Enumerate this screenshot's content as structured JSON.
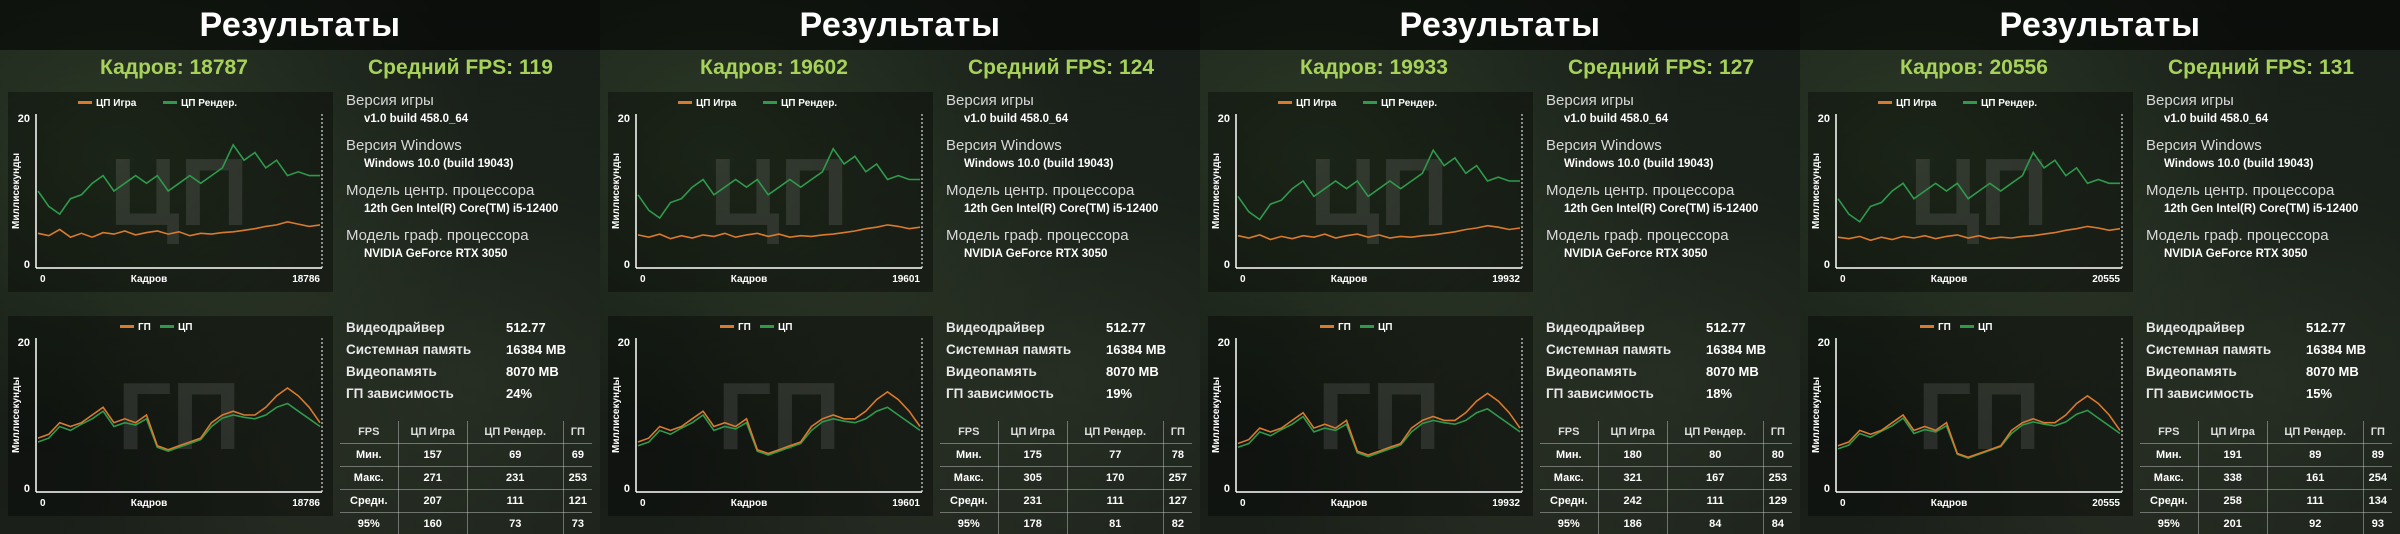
{
  "colors": {
    "orange": "#d97a2c",
    "green": "#2f9a4c",
    "accent": "#a6d25a"
  },
  "panels": [
    {
      "title": "Результаты",
      "frames": "Кадров: 18787",
      "avg_fps": "Средний FPS: 119",
      "info": [
        {
          "label": "Версия игры",
          "value": "v1.0 build 458.0_64"
        },
        {
          "label": "Версия Windows",
          "value": "Windows 10.0 (build 19043)"
        },
        {
          "label": "Модель центр. процессора",
          "value": "12th Gen Intel(R) Core(TM) i5-12400"
        },
        {
          "label": "Модель граф. процессора",
          "value": "NVIDIA GeForce RTX 3050"
        }
      ],
      "spec": [
        {
          "k": "Видеодрайвер",
          "v": "512.77"
        },
        {
          "k": "Системная память",
          "v": "16384 MB"
        },
        {
          "k": "Видеопамять",
          "v": "8070 MB"
        },
        {
          "k": "ГП зависимость",
          "v": "24%"
        }
      ],
      "table": {
        "headers": [
          "FPS",
          "ЦП Игра",
          "ЦП Рендер.",
          "ГП"
        ],
        "rows": [
          [
            "Мин.",
            "157",
            "69",
            "69"
          ],
          [
            "Макс.",
            "271",
            "231",
            "253"
          ],
          [
            "Средн.",
            "207",
            "111",
            "121"
          ],
          [
            "95%",
            "160",
            "73",
            "73"
          ]
        ]
      },
      "cpu_chart": {
        "legend": [
          "ЦП Игра",
          "ЦП Рендер."
        ],
        "watermark": "ЦП",
        "ylabel": "Миллисекунды",
        "xlabel": "Кадров",
        "ytick_max": "20",
        "ytick_min": "0",
        "xtick_min": "0",
        "xtick_max": "18786",
        "series": [
          {
            "name": "ЦП Игра",
            "values": [
              4.5,
              4.2,
              5,
              4,
              4.5,
              4,
              4.6,
              4.4,
              4.8,
              4.3,
              4.6,
              4.8,
              4.4,
              4.7,
              4.2,
              4.5,
              4.4,
              4.6,
              4.7,
              4.9,
              5.1,
              5.4,
              5.6,
              6,
              5.7,
              5.4,
              5.6
            ]
          },
          {
            "name": "ЦП Рендер.",
            "values": [
              10,
              8,
              7,
              9,
              9.5,
              11,
              12,
              10,
              11,
              12,
              11,
              12,
              10,
              11,
              12,
              11,
              12,
              13,
              16,
              14,
              15,
              13,
              14,
              12,
              12.5,
              12,
              12
            ]
          }
        ]
      },
      "gpu_chart": {
        "legend": [
          "ГП",
          "ЦП"
        ],
        "watermark": "ГП",
        "ylabel": "Миллисекунды",
        "xlabel": "Кадров",
        "ytick_max": "20",
        "ytick_min": "0",
        "xtick_min": "0",
        "xtick_max": "18786",
        "series": [
          {
            "name": "ГП",
            "values": [
              7,
              7.5,
              9,
              8.5,
              9,
              10,
              11,
              9,
              9.5,
              9,
              10,
              6,
              5.5,
              6,
              6.5,
              7,
              9,
              10,
              10.5,
              10,
              10,
              11,
              12.5,
              13.5,
              12.5,
              11,
              9
            ]
          },
          {
            "name": "ЦП",
            "values": [
              6.5,
              7,
              8.5,
              8,
              8.8,
              9.5,
              10.5,
              8.5,
              9,
              8.7,
              9.5,
              5.8,
              5.3,
              5.8,
              6.3,
              6.8,
              8.5,
              9.6,
              10,
              9.7,
              9.5,
              10,
              11,
              11.5,
              10.5,
              9.5,
              8.5
            ]
          }
        ]
      }
    },
    {
      "title": "Результаты",
      "frames": "Кадров: 19602",
      "avg_fps": "Средний FPS: 124",
      "info": [
        {
          "label": "Версия игры",
          "value": "v1.0 build 458.0_64"
        },
        {
          "label": "Версия Windows",
          "value": "Windows 10.0 (build 19043)"
        },
        {
          "label": "Модель центр. процессора",
          "value": "12th Gen Intel(R) Core(TM) i5-12400"
        },
        {
          "label": "Модель граф. процессора",
          "value": "NVIDIA GeForce RTX 3050"
        }
      ],
      "spec": [
        {
          "k": "Видеодрайвер",
          "v": "512.77"
        },
        {
          "k": "Системная память",
          "v": "16384 MB"
        },
        {
          "k": "Видеопамять",
          "v": "8070 MB"
        },
        {
          "k": "ГП зависимость",
          "v": "19%"
        }
      ],
      "table": {
        "headers": [
          "FPS",
          "ЦП Игра",
          "ЦП Рендер.",
          "ГП"
        ],
        "rows": [
          [
            "Мин.",
            "175",
            "77",
            "78"
          ],
          [
            "Макс.",
            "305",
            "170",
            "257"
          ],
          [
            "Средн.",
            "231",
            "111",
            "127"
          ],
          [
            "95%",
            "178",
            "81",
            "82"
          ]
        ]
      },
      "cpu_chart": {
        "legend": [
          "ЦП Игра",
          "ЦП Рендер."
        ],
        "watermark": "ЦП",
        "ylabel": "Миллисекунды",
        "xlabel": "Кадров",
        "ytick_max": "20",
        "ytick_min": "0",
        "xtick_min": "0",
        "xtick_max": "19601",
        "series": [
          {
            "name": "ЦП Игра",
            "values": [
              4.3,
              4,
              4.4,
              3.8,
              4.2,
              3.9,
              4.3,
              4.1,
              4.5,
              4,
              4.3,
              4.5,
              4.1,
              4.4,
              4,
              4.2,
              4.1,
              4.3,
              4.4,
              4.6,
              4.8,
              5.1,
              5.3,
              5.6,
              5.4,
              5.1,
              5.3
            ]
          },
          {
            "name": "ЦП Рендер.",
            "values": [
              9.5,
              7.5,
              6.5,
              8.5,
              9,
              10.5,
              11.5,
              9.5,
              10.5,
              11.5,
              10.5,
              11.5,
              9.5,
              10.5,
              11.5,
              10.5,
              11.5,
              12.5,
              15.5,
              13.5,
              14.5,
              12.5,
              13.5,
              11.5,
              12,
              11.5,
              11.5
            ]
          }
        ]
      },
      "gpu_chart": {
        "legend": [
          "ГП",
          "ЦП"
        ],
        "watermark": "ГП",
        "ylabel": "Миллисекунды",
        "xlabel": "Кадров",
        "ytick_max": "20",
        "ytick_min": "0",
        "xtick_min": "0",
        "xtick_max": "19601",
        "series": [
          {
            "name": "ГП",
            "values": [
              6.5,
              7,
              8.5,
              8,
              8.5,
              9.5,
              10.5,
              8.5,
              9,
              8.5,
              9.5,
              5.5,
              5,
              5.5,
              6,
              6.5,
              8.5,
              9.5,
              10,
              9.5,
              9.5,
              10.5,
              12,
              13,
              12,
              10.5,
              8.5
            ]
          },
          {
            "name": "ЦП",
            "values": [
              6,
              6.5,
              8,
              7.5,
              8.3,
              9,
              10,
              8,
              8.5,
              8.2,
              9,
              5.3,
              4.8,
              5.3,
              5.8,
              6.3,
              8,
              9.1,
              9.5,
              9.2,
              9,
              9.5,
              10.5,
              11,
              10,
              9,
              8
            ]
          }
        ]
      }
    },
    {
      "title": "Результаты",
      "frames": "Кадров: 19933",
      "avg_fps": "Средний FPS: 127",
      "info": [
        {
          "label": "Версия игры",
          "value": "v1.0 build 458.0_64"
        },
        {
          "label": "Версия Windows",
          "value": "Windows 10.0 (build 19043)"
        },
        {
          "label": "Модель центр. процессора",
          "value": "12th Gen Intel(R) Core(TM) i5-12400"
        },
        {
          "label": "Модель граф. процессора",
          "value": "NVIDIA GeForce RTX 3050"
        }
      ],
      "spec": [
        {
          "k": "Видеодрайвер",
          "v": "512.77"
        },
        {
          "k": "Системная память",
          "v": "16384 MB"
        },
        {
          "k": "Видеопамять",
          "v": "8070 MB"
        },
        {
          "k": "ГП зависимость",
          "v": "18%"
        }
      ],
      "table": {
        "headers": [
          "FPS",
          "ЦП Игра",
          "ЦП Рендер.",
          "ГП"
        ],
        "rows": [
          [
            "Мин.",
            "180",
            "80",
            "80"
          ],
          [
            "Макс.",
            "321",
            "167",
            "253"
          ],
          [
            "Средн.",
            "242",
            "111",
            "129"
          ],
          [
            "95%",
            "186",
            "84",
            "84"
          ]
        ]
      },
      "cpu_chart": {
        "legend": [
          "ЦП Игра",
          "ЦП Рендер."
        ],
        "watermark": "ЦП",
        "ylabel": "Миллисекунды",
        "xlabel": "Кадров",
        "ytick_max": "20",
        "ytick_min": "0",
        "xtick_min": "0",
        "xtick_max": "19932",
        "series": [
          {
            "name": "ЦП Игра",
            "values": [
              4.2,
              3.9,
              4.3,
              3.7,
              4.1,
              3.8,
              4.2,
              4,
              4.4,
              3.9,
              4.2,
              4.4,
              4,
              4.3,
              3.9,
              4.1,
              4,
              4.2,
              4.3,
              4.5,
              4.7,
              5,
              5.2,
              5.5,
              5.3,
              5,
              5.2
            ]
          },
          {
            "name": "ЦП Рендер.",
            "values": [
              9.3,
              7.3,
              6.3,
              8.3,
              8.8,
              10.3,
              11.3,
              9.3,
              10.3,
              11.3,
              10.3,
              11.3,
              9.3,
              10.3,
              11.3,
              10.3,
              11.3,
              12.3,
              15.3,
              13.3,
              14.3,
              12.3,
              13.3,
              11.3,
              11.8,
              11.3,
              11.3
            ]
          }
        ]
      },
      "gpu_chart": {
        "legend": [
          "ГП",
          "ЦП"
        ],
        "watermark": "ГП",
        "ylabel": "Миллисекунды",
        "xlabel": "Кадров",
        "ytick_max": "20",
        "ytick_min": "0",
        "xtick_min": "0",
        "xtick_max": "19932",
        "series": [
          {
            "name": "ГП",
            "values": [
              6.3,
              6.8,
              8.3,
              7.8,
              8.3,
              9.3,
              10.3,
              8.3,
              8.8,
              8.3,
              9.3,
              5.3,
              4.8,
              5.3,
              5.8,
              6.3,
              8.3,
              9.3,
              9.8,
              9.3,
              9.3,
              10.3,
              11.8,
              12.8,
              11.8,
              10.3,
              8.3
            ]
          },
          {
            "name": "ЦП",
            "values": [
              5.8,
              6.3,
              7.8,
              7.3,
              8.1,
              8.8,
              9.8,
              7.8,
              8.3,
              8,
              8.8,
              5.1,
              4.6,
              5.1,
              5.6,
              6.1,
              7.8,
              8.9,
              9.3,
              9,
              8.8,
              9.3,
              10.3,
              10.8,
              9.8,
              8.8,
              7.8
            ]
          }
        ]
      }
    },
    {
      "title": "Результаты",
      "frames": "Кадров: 20556",
      "avg_fps": "Средний FPS: 131",
      "info": [
        {
          "label": "Версия игры",
          "value": "v1.0 build 458.0_64"
        },
        {
          "label": "Версия Windows",
          "value": "Windows 10.0 (build 19043)"
        },
        {
          "label": "Модель центр. процессора",
          "value": "12th Gen Intel(R) Core(TM) i5-12400"
        },
        {
          "label": "Модель граф. процессора",
          "value": "NVIDIA GeForce RTX 3050"
        }
      ],
      "spec": [
        {
          "k": "Видеодрайвер",
          "v": "512.77"
        },
        {
          "k": "Системная память",
          "v": "16384 MB"
        },
        {
          "k": "Видеопамять",
          "v": "8070 MB"
        },
        {
          "k": "ГП зависимость",
          "v": "15%"
        }
      ],
      "table": {
        "headers": [
          "FPS",
          "ЦП Игра",
          "ЦП Рендер.",
          "ГП"
        ],
        "rows": [
          [
            "Мин.",
            "191",
            "89",
            "89"
          ],
          [
            "Макс.",
            "338",
            "161",
            "254"
          ],
          [
            "Средн.",
            "258",
            "111",
            "134"
          ],
          [
            "95%",
            "201",
            "92",
            "93"
          ]
        ]
      },
      "cpu_chart": {
        "legend": [
          "ЦП Игра",
          "ЦП Рендер."
        ],
        "watermark": "ЦП",
        "ylabel": "Миллисекунды",
        "xlabel": "Кадров",
        "ytick_max": "20",
        "ytick_min": "0",
        "xtick_min": "0",
        "xtick_max": "20555",
        "series": [
          {
            "name": "ЦП Игра",
            "values": [
              4,
              3.8,
              4.1,
              3.6,
              4,
              3.7,
              4.1,
              3.9,
              4.2,
              3.8,
              4.1,
              4.3,
              3.9,
              4.2,
              3.8,
              4,
              3.9,
              4.1,
              4.2,
              4.4,
              4.6,
              4.9,
              5.1,
              5.4,
              5.2,
              4.9,
              5.1
            ]
          },
          {
            "name": "ЦП Рендер.",
            "values": [
              9,
              7,
              6,
              8,
              8.5,
              10,
              11,
              9,
              10,
              11,
              10,
              11,
              9,
              10,
              11,
              10,
              11,
              12,
              15,
              13,
              14,
              12,
              13,
              11,
              11.5,
              11,
              11
            ]
          }
        ]
      },
      "gpu_chart": {
        "legend": [
          "ГП",
          "ЦП"
        ],
        "watermark": "ГП",
        "ylabel": "Миллисекунды",
        "xlabel": "Кадров",
        "ytick_max": "20",
        "ytick_min": "0",
        "xtick_min": "0",
        "xtick_max": "20555",
        "series": [
          {
            "name": "ГП",
            "values": [
              6,
              6.5,
              8,
              7.5,
              8,
              9,
              10,
              8,
              8.5,
              8,
              9,
              5,
              4.5,
              5,
              5.5,
              6,
              8,
              9,
              9.5,
              9,
              9,
              10,
              11.5,
              12.5,
              11.5,
              10,
              8
            ]
          },
          {
            "name": "ЦП",
            "values": [
              5.6,
              6.1,
              7.6,
              7.1,
              7.9,
              8.6,
              9.6,
              7.6,
              8.1,
              7.8,
              8.6,
              4.9,
              4.4,
              4.9,
              5.4,
              5.9,
              7.6,
              8.7,
              9.1,
              8.8,
              8.6,
              9.1,
              10.1,
              10.6,
              9.6,
              8.6,
              7.6
            ]
          }
        ]
      }
    }
  ]
}
